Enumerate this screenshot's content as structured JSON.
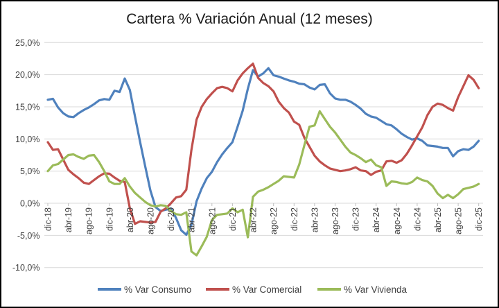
{
  "title": "Cartera % Variación Anual (12 meses)",
  "colors": {
    "consumo": "#4F81BD",
    "comercial": "#C0504D",
    "vivienda": "#9BBB59",
    "grid": "#D9D9D9",
    "tick": "#BFBFBF",
    "axis_text": "#3f3f3f",
    "title_text": "#1a1a1a"
  },
  "y_axis": {
    "tick_labels": [
      "25,0%",
      "20,0%",
      "15,0%",
      "10,0%",
      "5,0%",
      "0,0%",
      "-5,0%",
      "-10,0%"
    ],
    "tick_values": [
      25,
      20,
      15,
      10,
      5,
      0,
      -5,
      -10
    ]
  },
  "x_axis": {
    "tick_every": 4,
    "visible_tick_labels": [
      "dic-18",
      "abr-19",
      "ago-19",
      "dic-19",
      "abr-20",
      "ago-20",
      "dic-20",
      "abr-21",
      "ago-21",
      "dic-21",
      "abr-22",
      "ago-22",
      "dic-22",
      "abr-23",
      "ago-23",
      "dic-23",
      "abr-24",
      "ago-24",
      "dic-24",
      "abr-25",
      "ago-25",
      "dic-25"
    ]
  },
  "chart_data": {
    "type": "line",
    "title": "Cartera % Variación Anual (12 meses)",
    "ylim": [
      -10,
      25
    ],
    "grid": true,
    "legend_position": "bottom",
    "x": [
      "dic-18",
      "ene-19",
      "feb-19",
      "mar-19",
      "abr-19",
      "may-19",
      "jun-19",
      "jul-19",
      "ago-19",
      "sep-19",
      "oct-19",
      "nov-19",
      "dic-19",
      "ene-20",
      "feb-20",
      "mar-20",
      "abr-20",
      "may-20",
      "jun-20",
      "jul-20",
      "ago-20",
      "sep-20",
      "oct-20",
      "nov-20",
      "dic-20",
      "ene-21",
      "feb-21",
      "mar-21",
      "abr-21",
      "may-21",
      "jun-21",
      "jul-21",
      "ago-21",
      "sep-21",
      "oct-21",
      "nov-21",
      "dic-21",
      "ene-22",
      "feb-22",
      "mar-22",
      "abr-22",
      "may-22",
      "jun-22",
      "jul-22",
      "ago-22",
      "sep-22",
      "oct-22",
      "nov-22",
      "dic-22",
      "ene-23",
      "feb-23",
      "mar-23",
      "abr-23",
      "may-23",
      "jun-23",
      "jul-23",
      "ago-23",
      "sep-23",
      "oct-23",
      "nov-23",
      "dic-23",
      "ene-24",
      "feb-24",
      "mar-24",
      "abr-24",
      "may-24",
      "jun-24",
      "jul-24",
      "ago-24",
      "sep-24",
      "oct-24",
      "nov-24",
      "dic-24",
      "ene-25",
      "feb-25",
      "mar-25",
      "abr-25",
      "may-25",
      "jun-25",
      "jul-25",
      "ago-25",
      "sep-25",
      "oct-25",
      "nov-25",
      "dic-25"
    ],
    "series": [
      {
        "name": "% Var Consumo",
        "color_key": "consumo",
        "values": [
          16.1,
          16.25,
          14.9,
          14.0,
          13.5,
          13.4,
          14.0,
          14.5,
          14.9,
          15.4,
          16.0,
          16.2,
          16.1,
          17.5,
          17.3,
          19.4,
          17.6,
          13.5,
          9.5,
          5.7,
          2.0,
          -0.6,
          -1.2,
          -1.0,
          -0.8,
          -2.3,
          -4.2,
          -4.9,
          -3.4,
          0.3,
          2.3,
          3.9,
          4.9,
          6.4,
          7.6,
          8.6,
          9.5,
          11.9,
          14.4,
          17.8,
          20.7,
          19.7,
          20.2,
          21.0,
          19.9,
          19.7,
          19.4,
          19.1,
          18.9,
          18.6,
          18.5,
          18.0,
          17.7,
          18.4,
          18.5,
          17.1,
          16.3,
          16.1,
          16.1,
          15.8,
          15.3,
          14.7,
          13.9,
          13.5,
          13.3,
          12.8,
          12.3,
          12.1,
          11.5,
          10.8,
          10.3,
          9.9,
          10.1,
          9.7,
          9.0,
          8.9,
          8.8,
          8.6,
          8.6,
          7.3,
          8.1,
          8.4,
          8.3,
          8.8,
          9.7
        ]
      },
      {
        "name": "% Var Comercial",
        "color_key": "comercial",
        "values": [
          9.5,
          8.3,
          8.4,
          6.8,
          5.2,
          4.5,
          3.9,
          3.2,
          3.0,
          3.6,
          4.2,
          4.65,
          4.6,
          4.0,
          3.5,
          3.3,
          -0.8,
          -3.2,
          -2.8,
          -2.9,
          -3.0,
          -2.9,
          -1.3,
          -0.8,
          0.0,
          0.9,
          1.1,
          2.1,
          8.3,
          13.0,
          15.0,
          16.2,
          17.1,
          17.9,
          18.1,
          17.9,
          17.4,
          19.1,
          20.2,
          21.0,
          21.7,
          19.5,
          18.7,
          18.2,
          17.4,
          15.8,
          14.8,
          14.1,
          12.7,
          12.2,
          10.2,
          8.8,
          7.4,
          6.5,
          5.9,
          5.4,
          5.2,
          5.0,
          5.1,
          5.3,
          5.6,
          5.1,
          5.0,
          4.4,
          4.9,
          5.1,
          6.5,
          6.6,
          6.3,
          6.7,
          7.7,
          9.0,
          10.4,
          11.8,
          13.7,
          15.0,
          15.5,
          15.3,
          14.8,
          14.4,
          16.5,
          18.2,
          19.9,
          19.2,
          17.9
        ]
      },
      {
        "name": "% Var Vivienda",
        "color_key": "vivienda",
        "values": [
          5.0,
          5.9,
          6.1,
          6.8,
          7.5,
          7.6,
          7.2,
          6.9,
          7.4,
          7.5,
          6.4,
          5.0,
          3.4,
          3.0,
          3.0,
          3.9,
          2.6,
          1.6,
          0.9,
          0.2,
          -0.3,
          -0.5,
          -0.3,
          -0.4,
          -1.2,
          -1.7,
          -1.8,
          -1.4,
          -7.5,
          -8.1,
          -6.7,
          -5.2,
          -2.6,
          -1.8,
          -1.7,
          -1.6,
          -0.8,
          -1.4,
          -1.0,
          -5.3,
          1.0,
          1.8,
          2.1,
          2.5,
          3.0,
          3.5,
          4.2,
          4.1,
          4.0,
          6.0,
          9.0,
          11.9,
          12.1,
          14.3,
          13.1,
          11.9,
          11.0,
          9.9,
          8.8,
          7.9,
          7.5,
          7.0,
          6.4,
          6.8,
          5.9,
          5.6,
          2.7,
          3.4,
          3.3,
          3.1,
          3.0,
          3.3,
          4.0,
          3.6,
          3.4,
          2.7,
          1.5,
          0.8,
          1.3,
          0.8,
          1.4,
          2.2,
          2.4,
          2.6,
          3.0
        ]
      }
    ]
  }
}
